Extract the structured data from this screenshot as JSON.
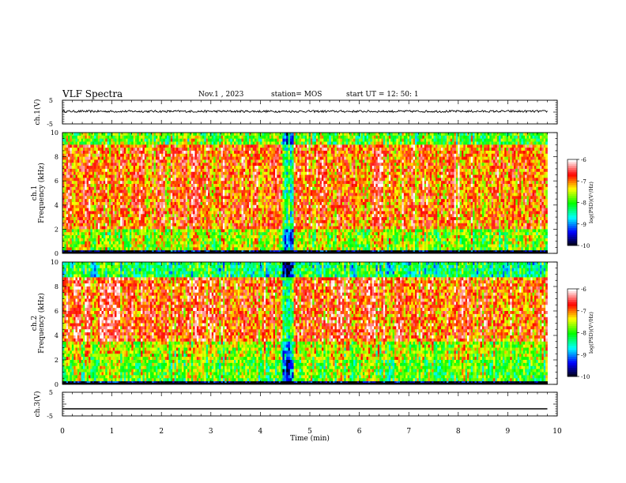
{
  "header": {
    "title": "VLF Spectra",
    "date": "Nov.1  , 2023",
    "station": "station= MOS",
    "start": "start  UT  =   12: 50: 1"
  },
  "chart_data": [
    {
      "type": "line",
      "panel": "ch1-voltage",
      "ylabel": "ch.1(V)",
      "ylim": [
        -5,
        5
      ],
      "y_ticklabels": [
        "5",
        "-5"
      ],
      "xlim": [
        0,
        10
      ],
      "x": [
        0,
        9.8
      ],
      "y": [
        0.3,
        0.3
      ],
      "line_color": "#000000"
    },
    {
      "type": "heatmap",
      "panel": "ch1-spectrogram",
      "ylabel": "ch.1\nFrequency (kHz)",
      "ylim": [
        0,
        10
      ],
      "y_ticklabels": [
        "0",
        "2",
        "4",
        "6",
        "8",
        "10"
      ],
      "xlim": [
        0,
        10
      ],
      "data_x_extent_min": [
        0,
        9.8
      ],
      "colorbar": {
        "label": "log(PSD)(V²/Hz)",
        "range": [
          -10,
          -6
        ],
        "ticklabels": [
          "-6",
          "-7",
          "-8",
          "-9",
          "-10"
        ],
        "colormap": [
          "#000000",
          "#0000ff",
          "#00ffff",
          "#00ff00",
          "#ffff00",
          "#ff0000",
          "#ffffff"
        ]
      }
    },
    {
      "type": "heatmap",
      "panel": "ch2-spectrogram",
      "ylabel": "ch.2\nFrequency (kHz)",
      "ylim": [
        0,
        10
      ],
      "y_ticklabels": [
        "0",
        "2",
        "4",
        "6",
        "8",
        "10"
      ],
      "xlim": [
        0,
        10
      ],
      "data_x_extent_min": [
        0,
        9.8
      ],
      "colorbar": {
        "label": "log(PSD)(V²/Hz)",
        "range": [
          -10,
          -6
        ],
        "ticklabels": [
          "-6",
          "-7",
          "-8",
          "-9",
          "-10"
        ],
        "colormap": [
          "#000000",
          "#0000ff",
          "#00ffff",
          "#00ff00",
          "#ffff00",
          "#ff0000",
          "#ffffff"
        ]
      }
    },
    {
      "type": "line",
      "panel": "ch3-voltage",
      "ylabel": "ch.3(V)",
      "ylim": [
        -5,
        5
      ],
      "y_ticklabels": [
        "5",
        "-5"
      ],
      "xlim": [
        0,
        10
      ],
      "x": [
        0,
        9.8
      ],
      "y": [
        -2,
        -2
      ],
      "line_color": "#000000"
    }
  ],
  "x_axis": {
    "label": "Time  (min)",
    "ticklabels": [
      "0",
      "1",
      "2",
      "3",
      "4",
      "5",
      "6",
      "7",
      "8",
      "9",
      "10"
    ]
  }
}
